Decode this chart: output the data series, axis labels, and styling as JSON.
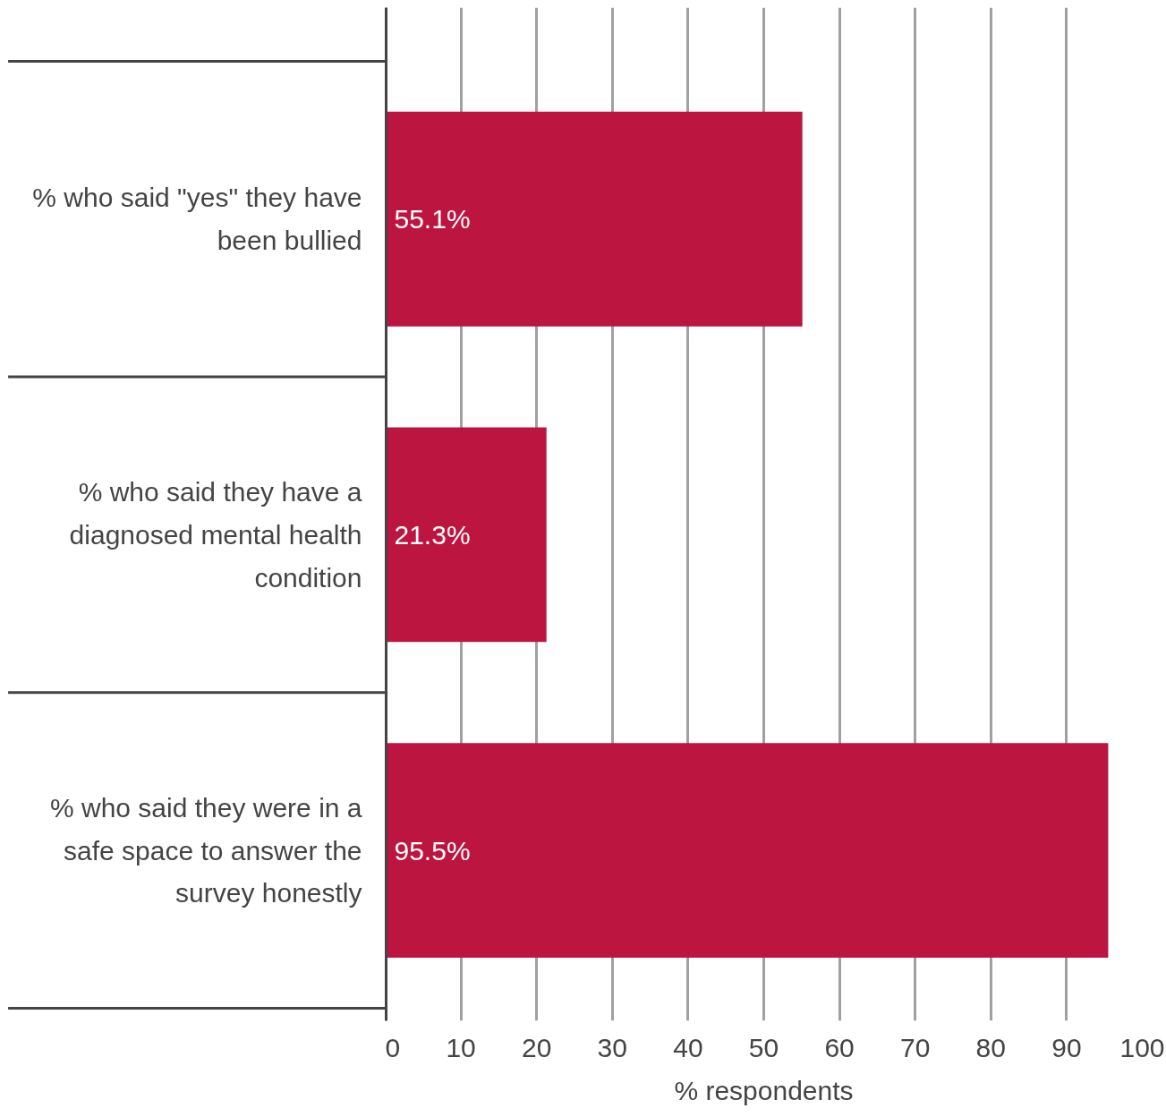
{
  "chart_data": {
    "type": "bar",
    "orientation": "horizontal",
    "categories": [
      "% who said \"yes\" they have been bullied",
      "% who said they have a diagnosed mental health condition",
      "% who said they were in a safe space to answer the survey honestly"
    ],
    "values": [
      55.1,
      21.3,
      95.5
    ],
    "color": "#bc1540",
    "value_labels": [
      "55.1%",
      "21.3%",
      "95.5%"
    ],
    "xlabel": "% respondents",
    "xlim": [
      0,
      100
    ],
    "xticks": [
      0,
      10,
      20,
      30,
      40,
      50,
      60,
      70,
      80,
      90,
      100
    ],
    "grid": "x"
  }
}
